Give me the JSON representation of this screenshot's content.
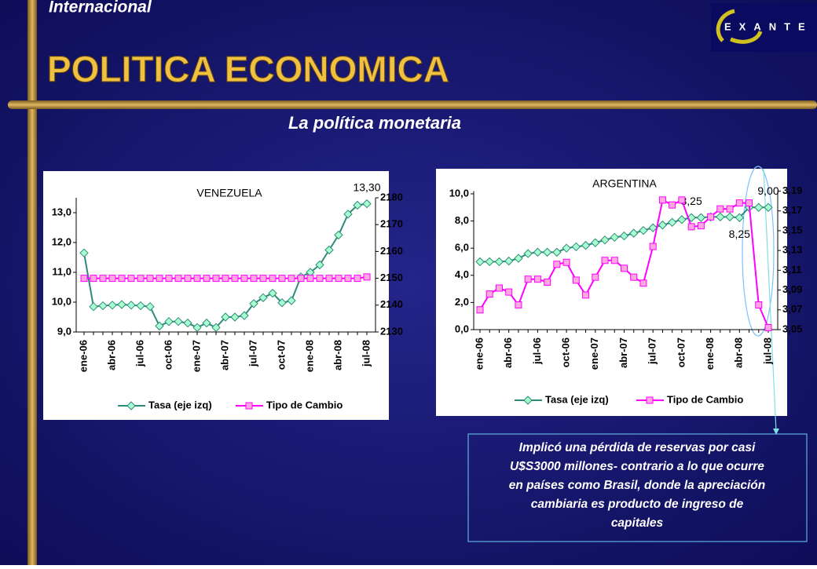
{
  "header": {
    "section": "Internacional",
    "title": "POLITICA ECONOMICA",
    "subtitle": "La política monetaria",
    "logo": "EXANTE"
  },
  "chart_data": [
    {
      "type": "line",
      "title": "VENEZUELA",
      "categories": [
        "ene-06",
        null,
        null,
        "abr-06",
        null,
        null,
        "jul-06",
        null,
        null,
        "oct-06",
        null,
        null,
        "ene-07",
        null,
        null,
        "abr-07",
        null,
        null,
        "jul-07",
        null,
        null,
        "oct-07",
        null,
        null,
        "ene-08",
        null,
        null,
        "abr-08",
        null,
        null,
        "jul-08"
      ],
      "series": [
        {
          "name": "Tasa (eje izq)",
          "color": "#2e8b7a",
          "marker_color": "#a8ffd0",
          "marker": "diamond",
          "values": [
            11.65,
            9.85,
            9.88,
            9.9,
            9.92,
            9.9,
            9.88,
            9.85,
            9.2,
            9.35,
            9.35,
            9.3,
            9.15,
            9.3,
            9.15,
            9.5,
            9.5,
            9.55,
            9.95,
            10.15,
            10.3,
            9.98,
            10.05,
            10.85,
            11.0,
            11.25,
            11.75,
            12.25,
            12.95,
            13.25,
            13.3
          ],
          "value_labels": [
            null,
            null,
            null,
            null,
            null,
            null,
            null,
            null,
            null,
            null,
            null,
            null,
            null,
            null,
            null,
            null,
            null,
            null,
            null,
            null,
            null,
            null,
            null,
            null,
            null,
            null,
            null,
            null,
            null,
            null,
            "13,30"
          ]
        },
        {
          "name": "Tipo de Cambio",
          "color": "#ff00ff",
          "marker_color": "#ffa8e0",
          "marker": "square",
          "axis": "y2",
          "values": [
            2150,
            2150,
            2150,
            2150,
            2150,
            2150,
            2150,
            2150,
            2150,
            2150,
            2150,
            2150,
            2150,
            2150,
            2150,
            2150,
            2150,
            2150,
            2150,
            2150,
            2150,
            2150,
            2150,
            2150,
            2150,
            2150,
            2150,
            2150,
            2150,
            2150,
            2150.5
          ]
        }
      ],
      "ylim": [
        9,
        13.5
      ],
      "yticks": [
        {
          "value": 9,
          "label": "9,0"
        },
        {
          "value": 10,
          "label": "10,0"
        },
        {
          "value": 11,
          "label": "11,0"
        },
        {
          "value": 12,
          "label": "12,0"
        },
        {
          "value": 13,
          "label": "13,0"
        }
      ],
      "y2lim": [
        2130,
        2180
      ],
      "y2ticks": [
        2130,
        2140,
        2150,
        2160,
        2170,
        2180
      ],
      "grid": false,
      "legend": "bottom"
    },
    {
      "type": "line",
      "title": "ARGENTINA",
      "categories": [
        "ene-06",
        null,
        null,
        "abr-06",
        null,
        null,
        "jul-06",
        null,
        null,
        "oct-06",
        null,
        null,
        "ene-07",
        null,
        null,
        "abr-07",
        null,
        null,
        "jul-07",
        null,
        null,
        "oct-07",
        null,
        null,
        "ene-08",
        null,
        null,
        "abr-08",
        null,
        null,
        "jul-08"
      ],
      "series": [
        {
          "name": "Tasa (eje izq)",
          "color": "#2e8b7a",
          "marker_color": "#a8ffd0",
          "marker": "diamond",
          "values": [
            5.0,
            5.0,
            5.0,
            5.05,
            5.25,
            5.6,
            5.7,
            5.7,
            5.7,
            6.0,
            6.1,
            6.2,
            6.4,
            6.6,
            6.8,
            6.9,
            7.1,
            7.3,
            7.5,
            7.7,
            7.9,
            8.1,
            8.25,
            8.25,
            8.3,
            8.3,
            8.3,
            8.25,
            9.0,
            9.0,
            9.0
          ],
          "value_labels": [
            null,
            null,
            null,
            null,
            null,
            null,
            null,
            null,
            null,
            null,
            null,
            null,
            null,
            null,
            null,
            null,
            null,
            null,
            null,
            null,
            null,
            null,
            "8,25",
            null,
            null,
            null,
            null,
            "8,25",
            null,
            null,
            "9,00"
          ]
        },
        {
          "name": "Tipo de Cambio",
          "color": "#ff00ff",
          "marker_color": "#ffa8e0",
          "marker": "square",
          "axis": "y2",
          "values": [
            3.07,
            3.086,
            3.092,
            3.088,
            3.075,
            3.101,
            3.101,
            3.098,
            3.116,
            3.118,
            3.1,
            3.085,
            3.103,
            3.12,
            3.12,
            3.112,
            3.103,
            3.097,
            3.134,
            3.181,
            3.176,
            3.181,
            3.154,
            3.155,
            3.164,
            3.172,
            3.172,
            3.178,
            3.178,
            3.075,
            3.052
          ]
        }
      ],
      "ylim": [
        0,
        10.2
      ],
      "yticks": [
        {
          "value": 0,
          "label": "0,0"
        },
        {
          "value": 2,
          "label": "2,0"
        },
        {
          "value": 4,
          "label": "4,0"
        },
        {
          "value": 6,
          "label": "6,0"
        },
        {
          "value": 8,
          "label": "8,0"
        },
        {
          "value": 10,
          "label": "10,0"
        }
      ],
      "y2lim": [
        3.05,
        3.19
      ],
      "y2ticks": [
        {
          "value": 3.05,
          "label": "3,05"
        },
        {
          "value": 3.07,
          "label": "3,07"
        },
        {
          "value": 3.09,
          "label": "3,09"
        },
        {
          "value": 3.11,
          "label": "3,11"
        },
        {
          "value": 3.13,
          "label": "3,13"
        },
        {
          "value": 3.15,
          "label": "3,15"
        },
        {
          "value": 3.17,
          "label": "3,17"
        },
        {
          "value": 3.19,
          "label": "3,19"
        }
      ],
      "grid": false,
      "legend": "bottom"
    }
  ],
  "note": {
    "lines": [
      "Implicó una pérdida de reservas por casi",
      "U$S3000 millones- contrario a lo que ocurre",
      "en países como Brasil, donde la apreciación",
      "cambiaria es producto de ingreso de",
      "capitales"
    ]
  }
}
